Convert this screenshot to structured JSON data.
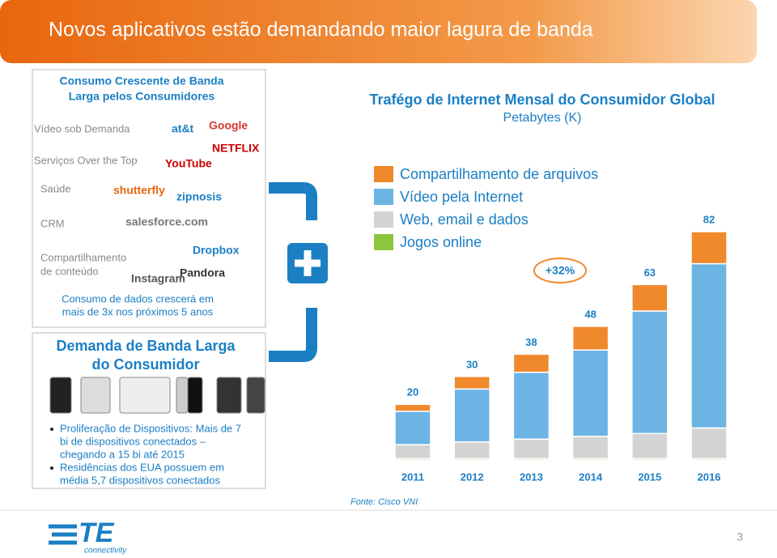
{
  "header": {
    "title": "Novos aplicativos estão demandando maior lagura de banda"
  },
  "left_panel": {
    "title_lines": [
      "Consumo Crescente de Banda",
      "Larga pelos Consumidores"
    ],
    "rows": [
      "Vídeo sob Demanda",
      "Serviços Over the Top",
      "Saúde",
      "CRM",
      "Compartilhamento",
      "de conteúdo"
    ],
    "logos": [
      "at&t",
      "Google",
      "NETFLIX",
      "YouTube",
      "shutterfly",
      "zipnosis",
      "salesforce.com",
      "Dropbox",
      "Instagram",
      "Pandora"
    ],
    "note_lines": [
      "Consumo de dados crescerá em",
      "mais de 3x nos próximos 5 anos"
    ]
  },
  "demand_panel": {
    "title_lines": [
      "Demanda de Banda Larga",
      "do Consumidor"
    ],
    "bullets": [
      [
        "Proliferação de Dispositivos: Mais de 7",
        "bi de dispositivos conectados –",
        "chegando a 15 bi até 2015"
      ],
      [
        "Residências dos EUA possuem em",
        "média 5,7 dispositivos conectados"
      ]
    ]
  },
  "chart_data": {
    "type": "bar",
    "stacked": true,
    "title": "Trafégo de Internet Mensal do Consumidor Global",
    "subtitle": "Petabytes (K)",
    "categories": [
      "2011",
      "2012",
      "2013",
      "2014",
      "2015",
      "2016"
    ],
    "series": [
      {
        "name": "Compartilhamento de arquivos",
        "color": "#f0892b",
        "values": [
          2.5,
          4.5,
          6.5,
          8.5,
          9.5,
          11.5
        ]
      },
      {
        "name": "Vídeo pela Internet",
        "color": "#6cb4e4",
        "values": [
          12,
          19,
          24,
          31,
          44,
          59
        ]
      },
      {
        "name": "Web, email e dados",
        "color": "#d3d3d3",
        "values": [
          5,
          6,
          7,
          8,
          9,
          11
        ]
      },
      {
        "name": "Jogos online",
        "color": "#8cc63f",
        "values": [
          0.5,
          0.5,
          0.5,
          0.5,
          0.5,
          0.5
        ]
      }
    ],
    "totals": [
      20,
      30,
      38,
      48,
      63,
      82
    ],
    "ylim": [
      0,
      85
    ],
    "annotation": "+32%",
    "source": "Fonte: Cisco VNI"
  },
  "footer": {
    "brand": "TE",
    "brand_sub": "connectivity",
    "page": "3"
  }
}
